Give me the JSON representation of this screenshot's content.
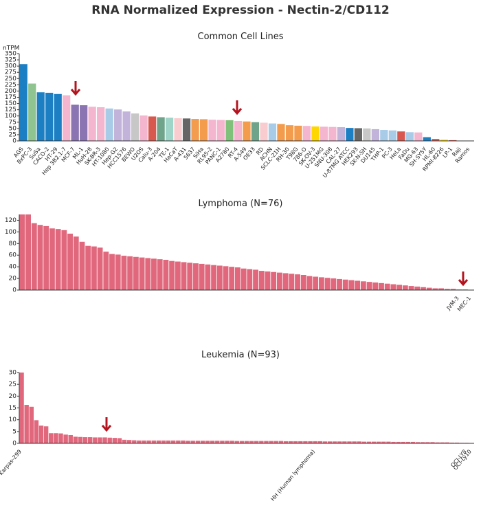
{
  "title": "RNA Normalized Expression - Nectin-2/CD112",
  "chart_data": [
    {
      "type": "bar",
      "title": "Common Cell Lines",
      "y_label": "nTPM",
      "categories": [
        "AGS",
        "BxPC-3",
        "SuSa",
        "CACO-2",
        "HT-29",
        "Hep 3B2.1-7",
        "MCF-7",
        "ML-1",
        "HuH-28",
        "SK-BR-3",
        "HT-1080",
        "Hep-G2",
        "HCC1576",
        "BEWO",
        "U2OS",
        "Calu-3",
        "A-204",
        "TE-1",
        "HaCaT",
        "A-431",
        "5637",
        "SiHa",
        "RL95-2",
        "PANC-1",
        "A2780",
        "RT-4",
        "A-549",
        "OE33",
        "RD",
        "ACHN",
        "SCLC-21H",
        "RH-30",
        "T98G",
        "786-O",
        "SK-OV-3",
        "U-251MG",
        "SNU-308",
        "CAL-27",
        "U-87MG ATCC",
        "HEK293",
        "SK-N-SH",
        "DU145",
        "THP-1",
        "PC-3",
        "HeLa",
        "FaDu",
        "MG-63",
        "SH-SY5Y",
        "HL-60",
        "RPMI-8226",
        "LP-1",
        "Raji",
        "Ramos"
      ],
      "values": [
        308,
        230,
        195,
        193,
        188,
        183,
        145,
        143,
        137,
        135,
        130,
        126,
        118,
        110,
        102,
        98,
        95,
        93,
        91,
        90,
        88,
        87,
        85,
        84,
        83,
        80,
        78,
        75,
        73,
        70,
        68,
        63,
        61,
        60,
        58,
        57,
        56,
        55,
        52,
        51,
        50,
        47,
        44,
        42,
        38,
        35,
        34,
        15,
        8,
        5,
        3,
        1,
        1
      ],
      "colors": [
        "#1c7fc4",
        "#8fc38f",
        "#1c7fc4",
        "#1c7fc4",
        "#1c7fc4",
        "#f4b6cf",
        "#8a75b2",
        "#8a75b2",
        "#f4b6cf",
        "#f4b6cf",
        "#a8cbe8",
        "#c2b3da",
        "#c2b3da",
        "#c7c7c7",
        "#f4b6cf",
        "#d8584f",
        "#6fa48b",
        "#9fd4c8",
        "#f9cdd0",
        "#666666",
        "#f39c4d",
        "#f39c4d",
        "#f4b6cf",
        "#f4b6cf",
        "#7fc07a",
        "#f4b6cf",
        "#f39c4d",
        "#6fa48b",
        "#f9cdd0",
        "#a8cbe8",
        "#f39c4d",
        "#f39c4d",
        "#f39c4d",
        "#f4b6cf",
        "#ffd700",
        "#f4b6cf",
        "#f4b6cf",
        "#c2b3da",
        "#1c7fc4",
        "#666666",
        "#c7c7c7",
        "#c2b3da",
        "#a8cbe8",
        "#a8cbe8",
        "#d8584f",
        "#a8cbe8",
        "#f4b6cf",
        "#1c7fc4",
        "#d8584f",
        "#ffd700",
        "#d8584f",
        "#d8584f",
        "#d8584f"
      ],
      "ylim": [
        0,
        350
      ],
      "yticks": [
        0,
        25,
        50,
        75,
        100,
        125,
        150,
        175,
        200,
        225,
        250,
        275,
        300,
        325,
        350
      ]
    },
    {
      "type": "bar",
      "title": "Lymphoma (N=76)",
      "color": "#e0677c",
      "categories": [
        null,
        null,
        null,
        null,
        null,
        null,
        null,
        null,
        null,
        null,
        null,
        null,
        null,
        null,
        null,
        null,
        null,
        null,
        null,
        null,
        null,
        null,
        null,
        null,
        null,
        null,
        null,
        null,
        null,
        null,
        null,
        null,
        null,
        null,
        null,
        null,
        null,
        null,
        null,
        null,
        null,
        null,
        null,
        null,
        null,
        null,
        null,
        null,
        null,
        null,
        null,
        null,
        null,
        null,
        null,
        null,
        null,
        null,
        null,
        null,
        null,
        null,
        null,
        null,
        null,
        null,
        null,
        null,
        null,
        null,
        null,
        null,
        null,
        "JVM-3",
        null,
        "MEC-1"
      ],
      "values": [
        130,
        130,
        115,
        112,
        110,
        106,
        105,
        103,
        97,
        92,
        83,
        76,
        75,
        73,
        66,
        62,
        61,
        59,
        58,
        57,
        56,
        55,
        54,
        53,
        52,
        50,
        49,
        48,
        47,
        46,
        45,
        44,
        43,
        42,
        41,
        40,
        39,
        37,
        36,
        35,
        33,
        32,
        31,
        30,
        29,
        28,
        27,
        26,
        24,
        23,
        22,
        21,
        20,
        19,
        18,
        17,
        16,
        15,
        14,
        13,
        12,
        11,
        10,
        9,
        8,
        7,
        6,
        5,
        4,
        3,
        3,
        2,
        2,
        1,
        1,
        0.5
      ],
      "ylim": [
        0,
        130
      ],
      "yticks": [
        0,
        20,
        40,
        60,
        80,
        100,
        120
      ]
    },
    {
      "type": "bar",
      "title": "Leukemia (N=93)",
      "color": "#e0677c",
      "categories": [
        "Karpas-299",
        null,
        null,
        null,
        null,
        null,
        null,
        null,
        null,
        null,
        null,
        null,
        null,
        null,
        null,
        null,
        null,
        null,
        null,
        null,
        null,
        null,
        null,
        null,
        null,
        null,
        null,
        null,
        null,
        null,
        null,
        null,
        null,
        null,
        null,
        null,
        null,
        null,
        null,
        null,
        null,
        null,
        null,
        null,
        null,
        null,
        null,
        null,
        null,
        null,
        null,
        null,
        null,
        null,
        null,
        null,
        null,
        null,
        null,
        null,
        "HH (Human lymphoma)",
        null,
        null,
        null,
        null,
        null,
        null,
        null,
        null,
        null,
        null,
        null,
        null,
        null,
        null,
        null,
        null,
        null,
        null,
        null,
        null,
        null,
        null,
        null,
        null,
        null,
        null,
        null,
        null,
        null,
        null,
        "OCI-LY8",
        "OCI-Ly10"
      ],
      "values": [
        30,
        16.3,
        15.5,
        9.8,
        7.5,
        7.2,
        4.3,
        4.3,
        4.2,
        3.7,
        3.5,
        2.8,
        2.7,
        2.6,
        2.6,
        2.5,
        2.5,
        2.5,
        2.4,
        2.3,
        2.2,
        1.5,
        1.4,
        1.3,
        1.2,
        1.2,
        1.2,
        1.2,
        1.2,
        1.2,
        1.2,
        1.2,
        1.2,
        1.2,
        1.1,
        1.1,
        1.1,
        1.1,
        1.1,
        1.1,
        1.1,
        1.1,
        1.1,
        1.1,
        1,
        1,
        1,
        1,
        1,
        1,
        1,
        1,
        1,
        1,
        0.9,
        0.9,
        0.9,
        0.9,
        0.9,
        0.9,
        0.9,
        0.9,
        0.8,
        0.8,
        0.8,
        0.8,
        0.8,
        0.8,
        0.8,
        0.8,
        0.7,
        0.7,
        0.7,
        0.7,
        0.7,
        0.7,
        0.6,
        0.6,
        0.6,
        0.6,
        0.6,
        0.5,
        0.5,
        0.5,
        0.5,
        0.4,
        0.4,
        0.4,
        0.3,
        0.3,
        0.2,
        0.2,
        0.1
      ],
      "ylim": [
        0,
        30
      ],
      "yticks": [
        0,
        5,
        10,
        15,
        20,
        25,
        30
      ]
    }
  ]
}
